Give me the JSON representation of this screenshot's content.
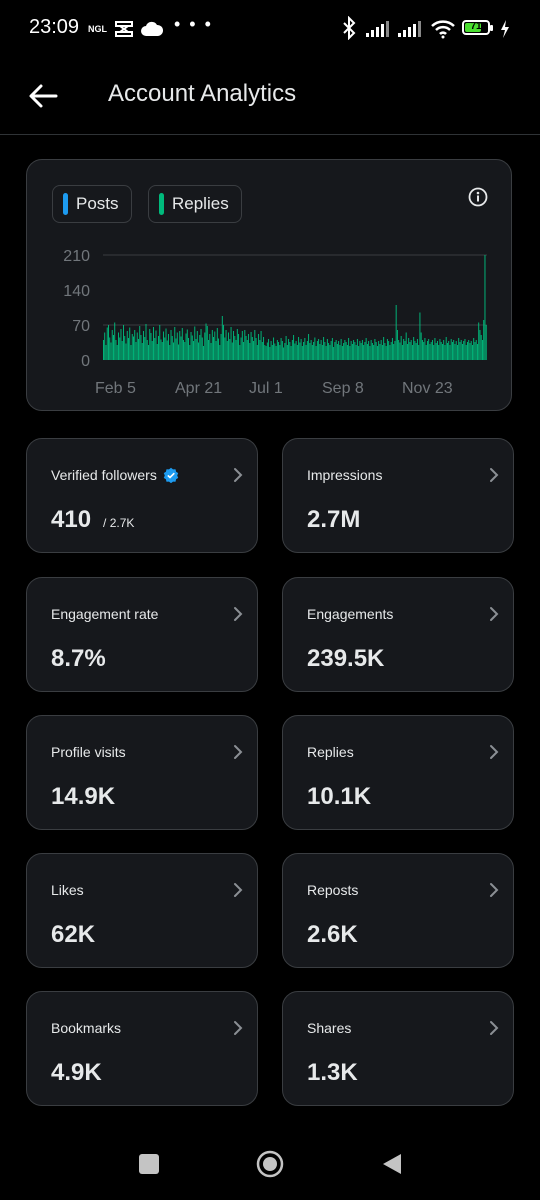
{
  "status_bar": {
    "time": "23:09",
    "carrier_tag": "NGL",
    "dots": "• • •",
    "battery": "71"
  },
  "header": {
    "title": "Account Analytics"
  },
  "chart_data": {
    "type": "bar",
    "legend": [
      "Posts",
      "Replies"
    ],
    "colors": {
      "posts": "#1d9bf0",
      "replies": "#00ba7c"
    },
    "y_ticks": [
      "210",
      "140",
      "70",
      "0"
    ],
    "ylim": [
      0,
      210
    ],
    "x_tick_labels": [
      "Feb 5",
      "Apr 21",
      "Jul 1",
      "Sep 8",
      "Nov 23"
    ],
    "x_range": [
      "Feb 5",
      "Jan 23"
    ],
    "series": [
      {
        "name": "Replies",
        "values": [
          40,
          55,
          30,
          65,
          70,
          45,
          35,
          60,
          50,
          75,
          40,
          30,
          55,
          45,
          62,
          38,
          70,
          48,
          33,
          58,
          44,
          65,
          30,
          52,
          47,
          60,
          36,
          55,
          42,
          68,
          50,
          34,
          58,
          46,
          72,
          40,
          30,
          62,
          54,
          38,
          66,
          44,
          59,
          32,
          48,
          70,
          41,
          36,
          57,
          45,
          63,
          39,
          52,
          30,
          60,
          48,
          35,
          66,
          43,
          55,
          31,
          58,
          47,
          64,
          40,
          36,
          53,
          61,
          44,
          30,
          56,
          49,
          38,
          67,
          42,
          58,
          35,
          50,
          62,
          45,
          28,
          55,
          73,
          68,
          40,
          52,
          34,
          60,
          46,
          57,
          38,
          64,
          43,
          30,
          52,
          88,
          70,
          45,
          60,
          38,
          55,
          42,
          66,
          35,
          58,
          48,
          40,
          62,
          52,
          30,
          45,
          58,
          36,
          60,
          48,
          40,
          52,
          34,
          56,
          46,
          38,
          60,
          44,
          30,
          52,
          40,
          58,
          36,
          46,
          30,
          28,
          35,
          42,
          26,
          38,
          30,
          45,
          33,
          28,
          40,
          36,
          30,
          44,
          38,
          25,
          34,
          48,
          30,
          42,
          36,
          28,
          40,
          50,
          33,
          38,
          30,
          46,
          35,
          42,
          28,
          36,
          44,
          30,
          38,
          52,
          34,
          40,
          30,
          36,
          45,
          28,
          38,
          42,
          32,
          40,
          30,
          46,
          36,
          28,
          42,
          34,
          30,
          38,
          44,
          26,
          36,
          40,
          32,
          38,
          30,
          42,
          28,
          34,
          40,
          36,
          30,
          44,
          28,
          38,
          32,
          40,
          36,
          30,
          42,
          28,
          38,
          34,
          40,
          30,
          36,
          44,
          32,
          38,
          28,
          40,
          34,
          30,
          42,
          36,
          28,
          38,
          32,
          40,
          30,
          46,
          34,
          28,
          42,
          38,
          30,
          36,
          44,
          32,
          38,
          110,
          60,
          40,
          35,
          48,
          30,
          42,
          38,
          55,
          32,
          44,
          36,
          40,
          30,
          46,
          38,
          34,
          42,
          30,
          95,
          55,
          40,
          36,
          44,
          30,
          38,
          42,
          32,
          36,
          40,
          30,
          44,
          34,
          38,
          30,
          42,
          36,
          32,
          40,
          30,
          46,
          34,
          38,
          30,
          42,
          36,
          40,
          32,
          38,
          30,
          44,
          36,
          40,
          32,
          38,
          42,
          30,
          36,
          40,
          34,
          38,
          30,
          44,
          36,
          40,
          32,
          75,
          60,
          50,
          40,
          80,
          210,
          70
        ]
      }
    ]
  },
  "cards": [
    {
      "label": "Verified followers",
      "value": "410",
      "sub": "/ 2.7K",
      "verified": true
    },
    {
      "label": "Impressions",
      "value": "2.7M"
    },
    {
      "label": "Engagement rate",
      "value": "8.7%"
    },
    {
      "label": "Engagements",
      "value": "239.5K"
    },
    {
      "label": "Profile visits",
      "value": "14.9K"
    },
    {
      "label": "Replies",
      "value": "10.1K"
    },
    {
      "label": "Likes",
      "value": "62K"
    },
    {
      "label": "Reposts",
      "value": "2.6K"
    },
    {
      "label": "Bookmarks",
      "value": "4.9K"
    },
    {
      "label": "Shares",
      "value": "1.3K"
    }
  ]
}
